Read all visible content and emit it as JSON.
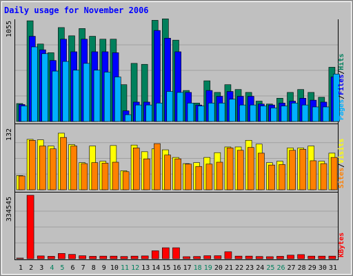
{
  "chart_data": [
    {
      "type": "bar",
      "title": "Daily usage for November 2006",
      "categories": [
        "1",
        "2",
        "3",
        "4",
        "5",
        "6",
        "7",
        "8",
        "9",
        "10",
        "11",
        "12",
        "13",
        "14",
        "15",
        "16",
        "17",
        "18",
        "19",
        "20",
        "21",
        "22",
        "23",
        "24",
        "25",
        "26",
        "27",
        "28",
        "29",
        "30",
        "31"
      ],
      "ylabel_parts": [
        "Pages",
        "Files",
        "Hits"
      ],
      "ymax_label": "1055",
      "ylim": [
        0,
        1055
      ],
      "series": [
        {
          "name": "Hits",
          "color": "#00805c",
          "values": [
            185,
            1040,
            800,
            710,
            970,
            885,
            960,
            880,
            850,
            850,
            380,
            600,
            590,
            1045,
            1060,
            840,
            320,
            190,
            420,
            300,
            380,
            330,
            300,
            210,
            180,
            240,
            300,
            330,
            300,
            250,
            560
          ]
        },
        {
          "name": "Files",
          "color": "#0000ff",
          "values": [
            175,
            880,
            740,
            630,
            850,
            720,
            850,
            720,
            720,
            710,
            110,
            200,
            200,
            940,
            860,
            720,
            300,
            170,
            320,
            260,
            310,
            260,
            260,
            180,
            170,
            190,
            210,
            240,
            220,
            200,
            460
          ]
        },
        {
          "name": "Pages",
          "color": "#00b0ff",
          "values": [
            160,
            770,
            700,
            520,
            620,
            530,
            600,
            530,
            510,
            460,
            70,
            170,
            170,
            190,
            310,
            300,
            190,
            160,
            190,
            190,
            230,
            170,
            170,
            160,
            140,
            160,
            190,
            170,
            150,
            150,
            490
          ]
        }
      ]
    },
    {
      "type": "bar",
      "categories": [
        "1",
        "2",
        "3",
        "4",
        "5",
        "6",
        "7",
        "8",
        "9",
        "10",
        "11",
        "12",
        "13",
        "14",
        "15",
        "16",
        "17",
        "18",
        "19",
        "20",
        "21",
        "22",
        "23",
        "24",
        "25",
        "26",
        "27",
        "28",
        "29",
        "30",
        "31"
      ],
      "ylabel_parts": [
        "Sites",
        "Visits"
      ],
      "ymax_label": "132",
      "ylim": [
        0,
        132
      ],
      "series": [
        {
          "name": "Visits",
          "color": "#ffff00",
          "values": [
            30,
            106,
            105,
            92,
            119,
            95,
            57,
            92,
            60,
            93,
            40,
            94,
            80,
            86,
            84,
            68,
            55,
            57,
            68,
            78,
            90,
            90,
            104,
            96,
            57,
            60,
            88,
            88,
            92,
            60,
            77
          ]
        },
        {
          "name": "Sites",
          "color": "#ff8000",
          "values": [
            29,
            104,
            92,
            86,
            110,
            92,
            55,
            57,
            56,
            58,
            38,
            88,
            65,
            97,
            73,
            65,
            54,
            49,
            54,
            58,
            88,
            83,
            89,
            77,
            52,
            53,
            83,
            85,
            61,
            55,
            68
          ]
        }
      ]
    },
    {
      "type": "bar",
      "categories": [
        "1",
        "2",
        "3",
        "4",
        "5",
        "6",
        "7",
        "8",
        "9",
        "10",
        "11",
        "12",
        "13",
        "14",
        "15",
        "16",
        "17",
        "18",
        "19",
        "20",
        "21",
        "22",
        "23",
        "24",
        "25",
        "26",
        "27",
        "28",
        "29",
        "30",
        "31"
      ],
      "ylabel_parts": [
        "KBytes"
      ],
      "ymax_label": "334545",
      "ylim": [
        0,
        334545
      ],
      "series": [
        {
          "name": "KBytes",
          "color": "#ff0000",
          "values": [
            3700,
            334545,
            15000,
            13000,
            28000,
            23000,
            16000,
            13000,
            14000,
            14000,
            12000,
            14000,
            15000,
            42000,
            58000,
            58000,
            11000,
            12000,
            16000,
            16000,
            37000,
            14000,
            14000,
            12000,
            11000,
            13000,
            19000,
            22000,
            14000,
            14000,
            14000
          ]
        }
      ]
    }
  ],
  "x_label_colors": {
    "weekday": "#000000",
    "weekend": "#00805c"
  },
  "weekend_days": [
    "4",
    "5",
    "11",
    "12",
    "18",
    "19",
    "25",
    "26"
  ],
  "colors": {
    "background": "#c0c0c0",
    "frame_border": "#808080",
    "title": "#0000ff",
    "separator": "#000000",
    "gridline": "#a0a0a0"
  }
}
